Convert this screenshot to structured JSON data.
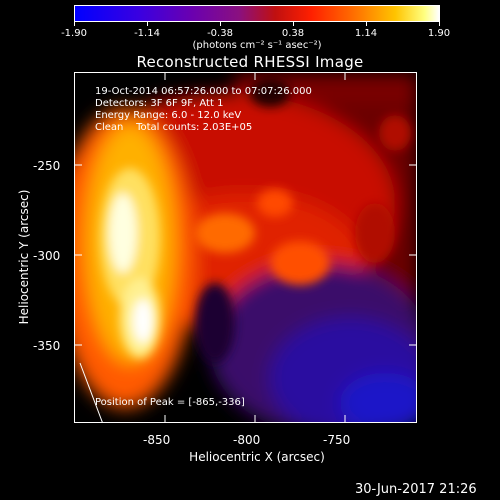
{
  "colorbar": {
    "tick_labels": [
      "-1.90",
      "-1.14",
      "-0.38",
      "0.38",
      "1.14",
      "1.90"
    ],
    "unit_label": "(photons cm⁻² s⁻¹ asec⁻²)"
  },
  "title": "Reconstructed RHESSI Image",
  "info": {
    "line1": "19-Oct-2014 06:57:26.000 to 07:07:26.000",
    "line2": "Detectors: 3F 6F 9F, Att 1",
    "line3": "Energy Range: 6.0 - 12.0 keV",
    "line4": "Clean    Total counts: 2.03E+05"
  },
  "peak_text": "Position of Peak = [-865,-336]",
  "x_axis": {
    "label": "Heliocentric X (arcsec)",
    "ticks": [
      "-850",
      "-800",
      "-750"
    ]
  },
  "y_axis": {
    "label": "Heliocentric Y (arcsec)",
    "ticks": [
      "-250",
      "-300",
      "-350"
    ]
  },
  "footer_date": "30-Jun-2017 21:26"
}
